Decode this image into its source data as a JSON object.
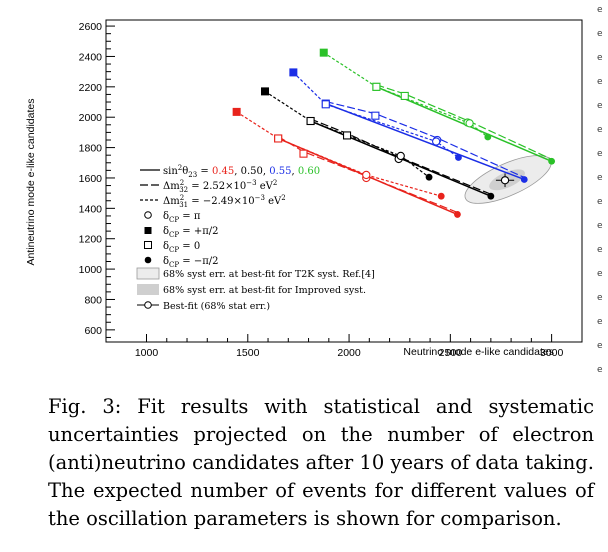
{
  "caption": "Fig. 3: Fit results with statistical and systematic uncertainties projected on the number of electron (anti)neutrino candidates after 10 years of data taking. The expected number of events for different values of the oscillation parameters is shown for comparison.",
  "colors": {
    "red": "#e8231c",
    "black": "#000000",
    "blue": "#1b2ee6",
    "green": "#2ac128",
    "syst_t2k": "#ececec",
    "syst_improved": "#cfcfcf"
  },
  "chart_data": {
    "type": "scatter",
    "xlabel": "Neutrino mode e-like candidates",
    "ylabel": "Antineutrino mode e-like candidates",
    "xlim": [
      800,
      3150
    ],
    "ylim": [
      520,
      2640
    ],
    "xticks": [
      "1000",
      "1500",
      "2000",
      "2500",
      "3000"
    ],
    "yticks": [
      "600",
      "800",
      "1000",
      "1200",
      "1400",
      "1600",
      "1800",
      "2000",
      "2200",
      "2400",
      "2600"
    ],
    "xtick_values": [
      1000,
      1500,
      2000,
      2500,
      3000
    ],
    "ytick_values": [
      600,
      800,
      1000,
      1200,
      1400,
      1600,
      1800,
      2000,
      2200,
      2400,
      2600
    ],
    "grid": false,
    "series": [
      {
        "name": "0.45",
        "color": "#e8231c",
        "delta_m2_32": {
          "x": [
            1650,
            1775,
            2085,
            2535
          ],
          "y": [
            1860,
            1760,
            1600,
            1360
          ]
        },
        "delta_m2_31": {
          "x": [
            1445,
            1650,
            2085,
            2455
          ],
          "y": [
            2035,
            1860,
            1620,
            1480
          ]
        }
      },
      {
        "name": "0.50",
        "color": "#000000",
        "delta_m2_32": {
          "x": [
            1810,
            1990,
            2245,
            2700
          ],
          "y": [
            1975,
            1880,
            1725,
            1480
          ]
        },
        "delta_m2_31": {
          "x": [
            1585,
            1810,
            2255,
            2395
          ],
          "y": [
            2170,
            1975,
            1745,
            1605
          ]
        }
      },
      {
        "name": "0.55",
        "color": "#1b2ee6",
        "delta_m2_32": {
          "x": [
            1885,
            2130,
            2435,
            2865
          ],
          "y": [
            2090,
            2010,
            1850,
            1590
          ]
        },
        "delta_m2_31": {
          "x": [
            1725,
            1885,
            2430,
            2540
          ],
          "y": [
            2295,
            2085,
            1840,
            1735
          ]
        }
      },
      {
        "name": "0.60",
        "color": "#2ac128",
        "delta_m2_32": {
          "x": [
            2135,
            2275,
            2585,
            3000
          ],
          "y": [
            2200,
            2140,
            1965,
            1710
          ]
        },
        "delta_m2_31": {
          "x": [
            1875,
            2135,
            2595,
            2685
          ],
          "y": [
            2425,
            2200,
            1960,
            1870
          ]
        }
      }
    ],
    "best_fit": {
      "x": 2770,
      "y": 1585,
      "xerr": 45,
      "yerr": 45
    },
    "syst_t2k_ellipse": {
      "cx": 2785,
      "cy": 1590,
      "rx": 230,
      "ry": 105,
      "angle": -24
    },
    "syst_improved_ellipse": {
      "cx": 2780,
      "cy": 1588,
      "rx": 95,
      "ry": 50,
      "angle": -24
    },
    "legend_placement": "middle-left",
    "legend": {
      "sin_prefix": "sin",
      "sin_sup": "2",
      "sin_theta": "θ",
      "sin_sub": "23",
      "sin_values": [
        "0.45",
        "0.50",
        "0.55",
        "0.60"
      ],
      "dm32_prefix": "Δm",
      "dm32_sup": "2",
      "dm32_sub": "32",
      "dm32_value": " = 2.52×10",
      "dm32_exp": "−3",
      "dm32_unit": " eV",
      "dm32_unit_sup": "2",
      "dm31_prefix": "Δm",
      "dm31_sup": "2",
      "dm31_sub": "31",
      "dm31_value": " = −2.49×10",
      "dm31_exp": "−3",
      "dm31_unit": " eV",
      "dm31_unit_sup": "2",
      "dcp_delta": "δ",
      "dcp_sub": "CP",
      "dcp_values": [
        " = π",
        " = +π/2",
        " = 0",
        " = −π/2"
      ],
      "syst_t2k": "68% syst err. at best-fit for T2K syst. Ref.[4]",
      "syst_improved": "68% syst err. at best-fit for Improved syst.",
      "bestfit": "Best-fit (68% stat err.)"
    }
  }
}
